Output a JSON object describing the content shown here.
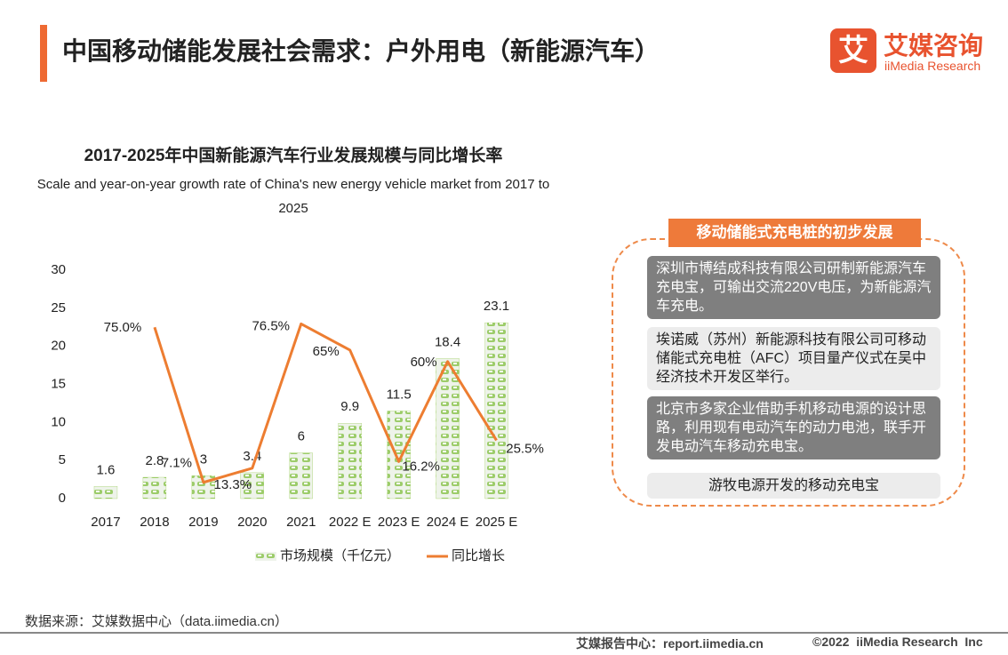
{
  "header": {
    "title": "中国移动储能发展社会需求：户外用电（新能源汽车）",
    "logo_icon": "艾",
    "logo_name": "艾媒咨询",
    "logo_en": "iiMedia Research"
  },
  "chart_data": {
    "type": "bar",
    "title": "2017-2025年中国新能源汽车行业发展规模与同比增长率",
    "subtitle": "Scale and year-on-year growth rate of China's new energy vehicle market from 2017 to 2025",
    "categories": [
      "2017",
      "2018",
      "2019",
      "2020",
      "2021",
      "2022 E",
      "2023 E",
      "2024 E",
      "2025 E"
    ],
    "series": [
      {
        "name": "市场规模（千亿元）",
        "type": "bar",
        "color": "#8cc63f",
        "values": [
          1.6,
          2.8,
          3,
          3.4,
          6,
          9.9,
          11.5,
          18.4,
          23.1
        ]
      },
      {
        "name": "同比增长",
        "type": "line",
        "axis": "y2",
        "color": "#ed7d31",
        "values": [
          null,
          75.0,
          7.1,
          13.3,
          76.5,
          65,
          16.2,
          60,
          25.5
        ],
        "value_labels": [
          null,
          "75.0%",
          "7.1%",
          "13.3%",
          "76.5%",
          "65%",
          "16.2%",
          "60%",
          "25.5%"
        ]
      }
    ],
    "ylim": [
      0,
      30
    ],
    "yticks": [
      0,
      5,
      10,
      15,
      20,
      25,
      30
    ],
    "y2lim": [
      0,
      100
    ],
    "grid": false,
    "legend": "bottom"
  },
  "panel": {
    "title": "移动储能式充电桩的初步发展",
    "items": [
      "深圳市博结成科技有限公司研制新能源汽车充电宝，可输出交流220V电压，为新能源汽车充电。",
      "埃诺威（苏州）新能源科技有限公司可移动储能式充电桩（AFC）项目量产仪式在吴中经济技术开发区举行。",
      "北京市多家企业借助手机移动电源的设计思路，利用现有电动汽车的动力电池，联手开发电动汽车移动充电宝。",
      "游牧电源开发的移动充电宝"
    ]
  },
  "source": "数据来源：艾媒数据中心（data.iimedia.cn）",
  "footer": {
    "left": "艾媒报告中心：report.iimedia.cn",
    "right": "©2022  iiMedia Research  Inc"
  }
}
